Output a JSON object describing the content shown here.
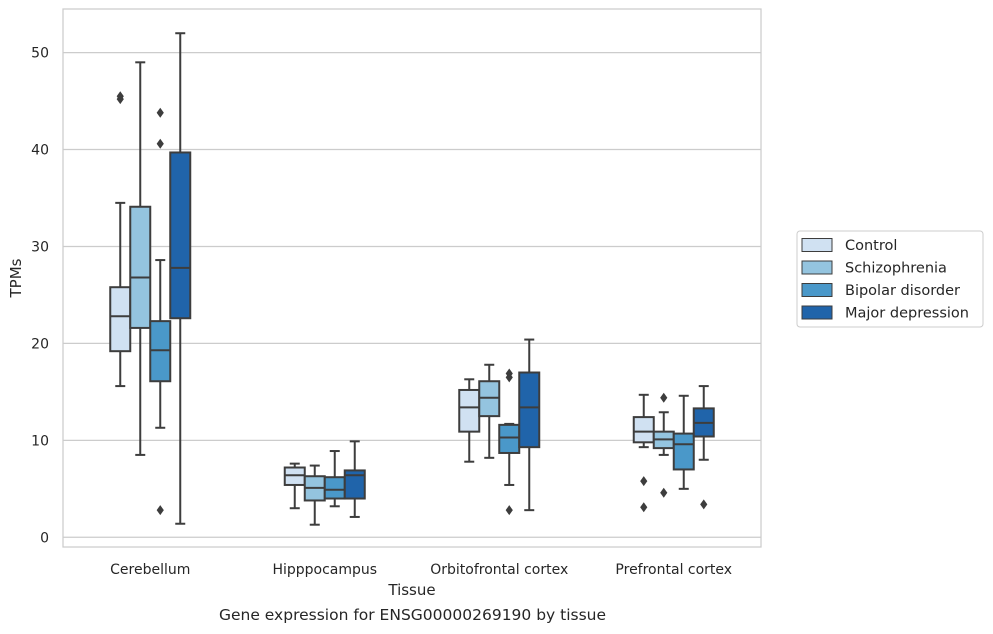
{
  "caption": "Gene expression for ENSG00000269190 by tissue",
  "chart_data": {
    "type": "box",
    "title": "",
    "xlabel": "Tissue",
    "ylabel": "TPMs",
    "ylim": [
      -1,
      54.5
    ],
    "yticks": [
      0,
      10,
      20,
      30,
      40,
      50
    ],
    "grid": "horizontal",
    "legend_position": "right",
    "categories": [
      "Cerebellum",
      "Hipppocampus",
      "Orbitofrontal cortex",
      "Prefrontal cortex"
    ],
    "series": [
      {
        "name": "Control",
        "color": "#d0e1f2",
        "boxes": [
          {
            "whislo": 15.6,
            "q1": 19.2,
            "med": 22.8,
            "q3": 25.8,
            "whishi": 34.5,
            "fliers": [
              45.2,
              45.5
            ]
          },
          {
            "whislo": 3.0,
            "q1": 5.4,
            "med": 6.4,
            "q3": 7.2,
            "whishi": 7.6,
            "fliers": []
          },
          {
            "whislo": 7.8,
            "q1": 10.9,
            "med": 13.4,
            "q3": 15.2,
            "whishi": 16.3,
            "fliers": []
          },
          {
            "whislo": 9.3,
            "q1": 9.8,
            "med": 10.9,
            "q3": 12.4,
            "whishi": 14.7,
            "fliers": [
              3.1,
              5.8
            ]
          }
        ]
      },
      {
        "name": "Schizophrenia",
        "color": "#94c4df",
        "boxes": [
          {
            "whislo": 8.5,
            "q1": 21.6,
            "med": 26.8,
            "q3": 34.1,
            "whishi": 49.0,
            "fliers": []
          },
          {
            "whislo": 1.3,
            "q1": 3.8,
            "med": 5.1,
            "q3": 6.3,
            "whishi": 7.4,
            "fliers": []
          },
          {
            "whislo": 8.2,
            "q1": 12.5,
            "med": 14.4,
            "q3": 16.1,
            "whishi": 17.8,
            "fliers": []
          },
          {
            "whislo": 8.5,
            "q1": 9.2,
            "med": 10.1,
            "q3": 10.9,
            "whishi": 12.9,
            "fliers": [
              4.6,
              14.4
            ]
          }
        ]
      },
      {
        "name": "Bipolar disorder",
        "color": "#4a98c9",
        "boxes": [
          {
            "whislo": 11.3,
            "q1": 16.1,
            "med": 19.3,
            "q3": 22.3,
            "whishi": 28.6,
            "fliers": [
              2.8,
              40.6,
              43.8
            ]
          },
          {
            "whislo": 3.2,
            "q1": 4.0,
            "med": 4.9,
            "q3": 6.2,
            "whishi": 8.9,
            "fliers": []
          },
          {
            "whislo": 5.4,
            "q1": 8.7,
            "med": 10.3,
            "q3": 11.6,
            "whishi": 11.7,
            "fliers": [
              2.8,
              16.5,
              16.9
            ]
          },
          {
            "whislo": 5.0,
            "q1": 7.0,
            "med": 9.6,
            "q3": 10.7,
            "whishi": 14.6,
            "fliers": []
          }
        ]
      },
      {
        "name": "Major depression",
        "color": "#2064aa",
        "boxes": [
          {
            "whislo": 1.4,
            "q1": 22.6,
            "med": 27.8,
            "q3": 39.7,
            "whishi": 52.0,
            "fliers": []
          },
          {
            "whislo": 2.1,
            "q1": 4.0,
            "med": 6.4,
            "q3": 6.9,
            "whishi": 9.9,
            "fliers": []
          },
          {
            "whislo": 2.8,
            "q1": 9.3,
            "med": 13.4,
            "q3": 17.0,
            "whishi": 20.4,
            "fliers": []
          },
          {
            "whislo": 8.0,
            "q1": 10.4,
            "med": 11.8,
            "q3": 13.3,
            "whishi": 15.6,
            "fliers": [
              3.4
            ]
          }
        ]
      }
    ]
  }
}
